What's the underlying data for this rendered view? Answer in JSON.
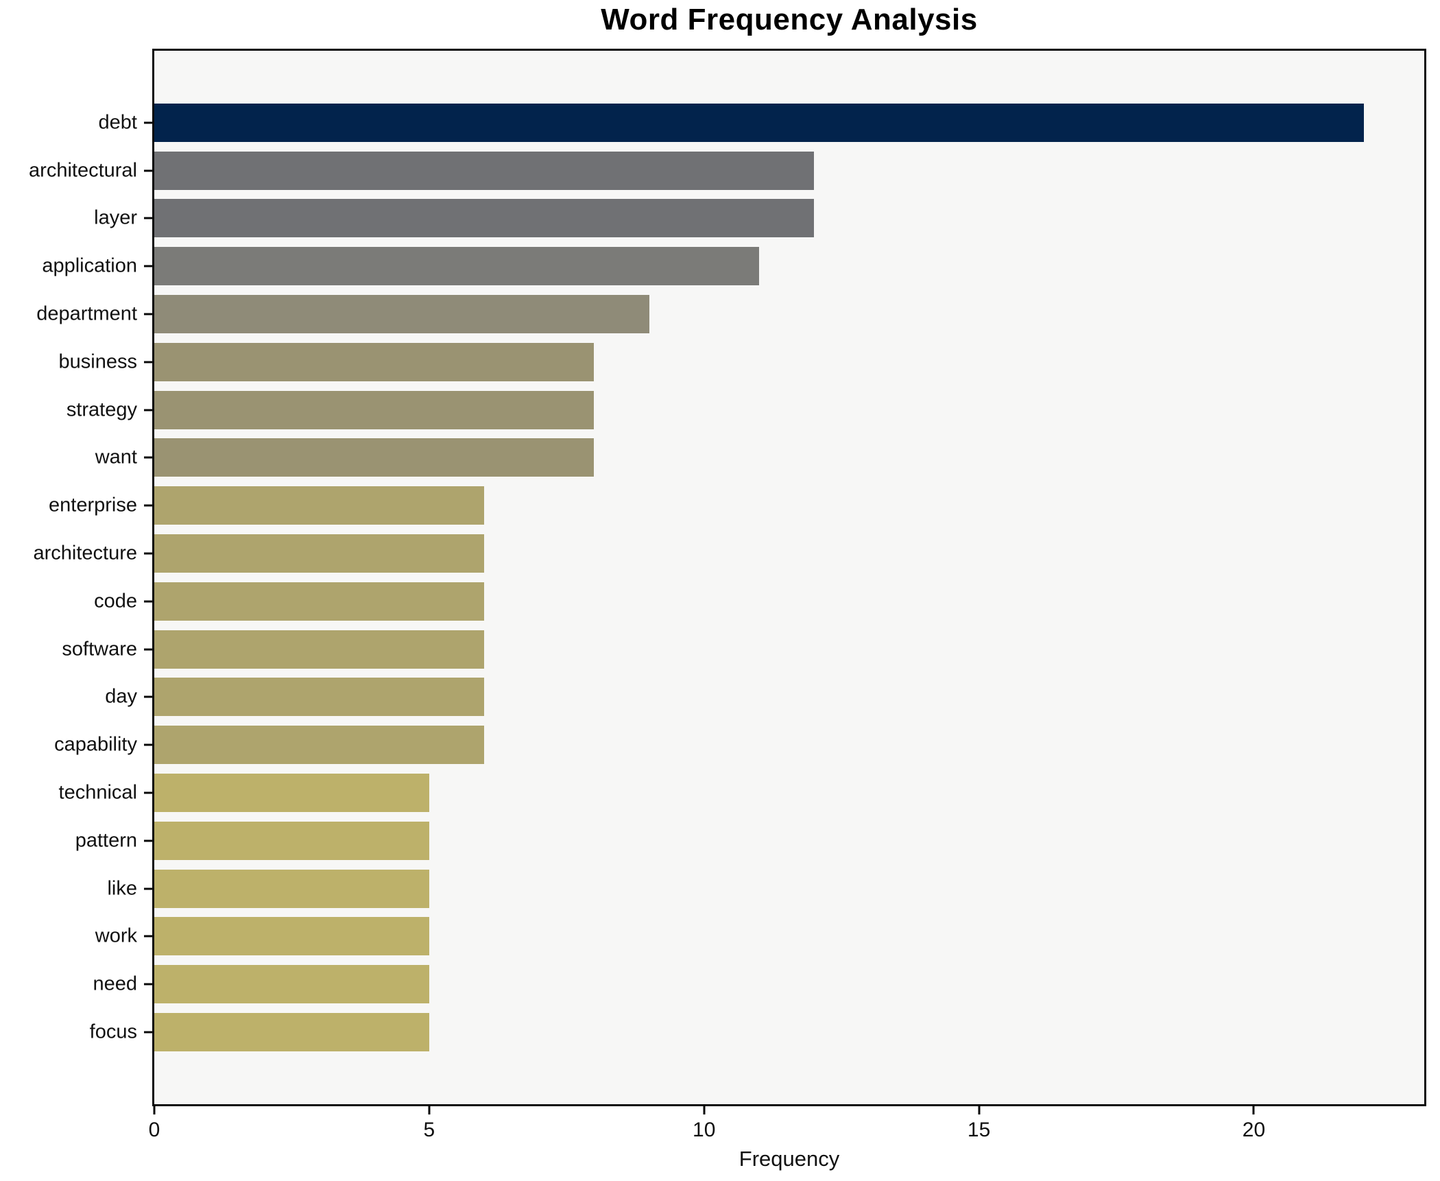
{
  "chart_data": {
    "type": "bar",
    "orientation": "horizontal",
    "title": "Word Frequency Analysis",
    "xlabel": "Frequency",
    "ylabel": "",
    "categories": [
      "debt",
      "architectural",
      "layer",
      "application",
      "department",
      "business",
      "strategy",
      "want",
      "enterprise",
      "architecture",
      "code",
      "software",
      "day",
      "capability",
      "technical",
      "pattern",
      "like",
      "work",
      "need",
      "focus"
    ],
    "values": [
      22,
      12,
      12,
      11,
      9,
      8,
      8,
      8,
      6,
      6,
      6,
      6,
      6,
      6,
      5,
      5,
      5,
      5,
      5,
      5
    ],
    "bar_colors": [
      "#02234c",
      "#707174",
      "#707174",
      "#7b7b78",
      "#8f8b78",
      "#9a9372",
      "#9a9372",
      "#9a9372",
      "#aea46d",
      "#aea46d",
      "#aea46d",
      "#aea46d",
      "#aea46d",
      "#aea46d",
      "#bdb16a",
      "#bdb16a",
      "#bdb16a",
      "#bdb16a",
      "#bdb16a",
      "#bdb16a"
    ],
    "xlim": [
      0,
      23.1
    ],
    "xticks": [
      0,
      5,
      10,
      15,
      20
    ],
    "grid": false,
    "legend": null,
    "plot_background": "#f7f7f6",
    "figure_background": "#ffffff",
    "spine_color": "#0a0a0a"
  }
}
